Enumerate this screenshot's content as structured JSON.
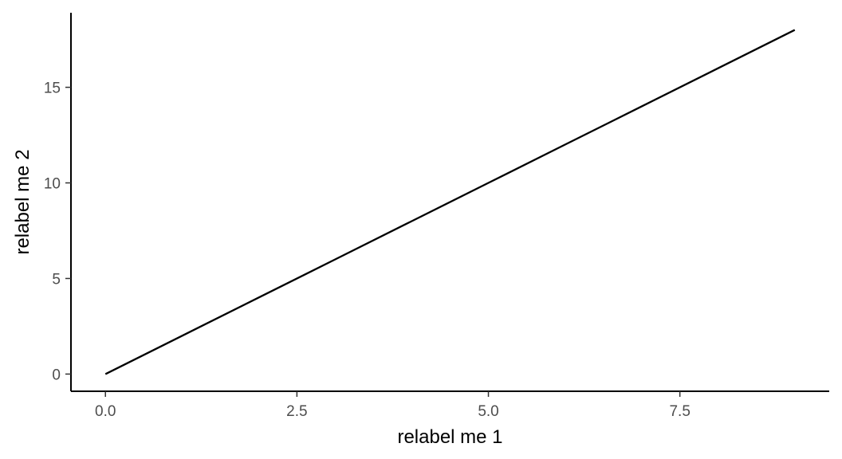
{
  "chart_data": {
    "type": "line",
    "title": "",
    "xlabel": "relabel me 1",
    "ylabel": "relabel me 2",
    "xlim": [
      -0.45,
      9.45
    ],
    "ylim": [
      -0.9,
      18.9
    ],
    "x_ticks": [
      0,
      2.5,
      5,
      7.5
    ],
    "x_tick_labels": [
      "0.0",
      "2.5",
      "5.0",
      "7.5"
    ],
    "y_ticks": [
      0,
      5,
      10,
      15
    ],
    "y_tick_labels": [
      "0",
      "5",
      "10",
      "15"
    ],
    "grid": false,
    "series": [
      {
        "x": [
          0,
          1,
          2,
          3,
          4,
          5,
          6,
          7,
          8,
          9
        ],
        "y": [
          0,
          2,
          4,
          6,
          8,
          10,
          12,
          14,
          16,
          18
        ],
        "color": "#000000"
      }
    ]
  }
}
